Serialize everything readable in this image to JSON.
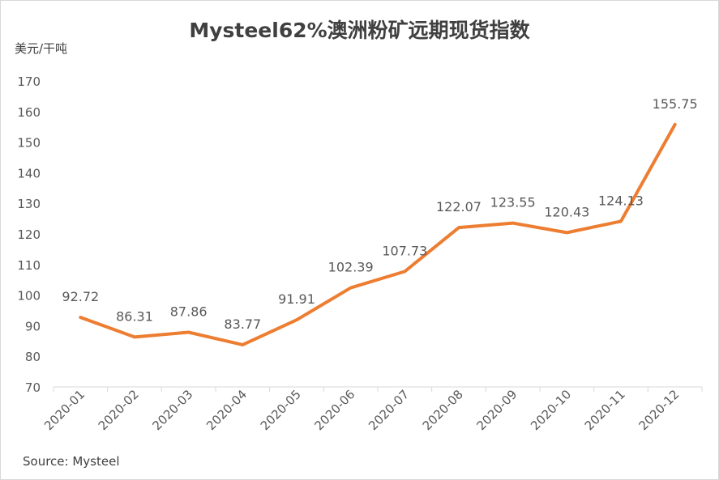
{
  "chart_data": {
    "type": "line",
    "title": "Mysteel62%澳洲粉矿远期现货指数",
    "ylabel": "美元/干吨",
    "xlabel": "",
    "categories": [
      "2020-01",
      "2020-02",
      "2020-03",
      "2020-04",
      "2020-05",
      "2020-06",
      "2020-07",
      "2020-08",
      "2020-09",
      "2020-10",
      "2020-11",
      "2020-12"
    ],
    "series": [
      {
        "values": [
          92.72,
          86.31,
          87.86,
          83.77,
          91.91,
          102.39,
          107.73,
          122.07,
          123.55,
          120.43,
          124.13,
          155.75
        ]
      }
    ],
    "data_labels": [
      "92.72",
      "86.31",
      "87.86",
      "83.77",
      "91.91",
      "102.39",
      "107.73",
      "122.07",
      "123.55",
      "120.43",
      "124.13",
      "155.75"
    ],
    "yticks": [
      "70",
      "80",
      "90",
      "100",
      "110",
      "120",
      "130",
      "140",
      "150",
      "160",
      "170"
    ],
    "ylim": [
      70,
      170
    ],
    "grid": false,
    "legend": "none",
    "line_color": "#ED7D31",
    "source": "Source: Mysteel"
  }
}
